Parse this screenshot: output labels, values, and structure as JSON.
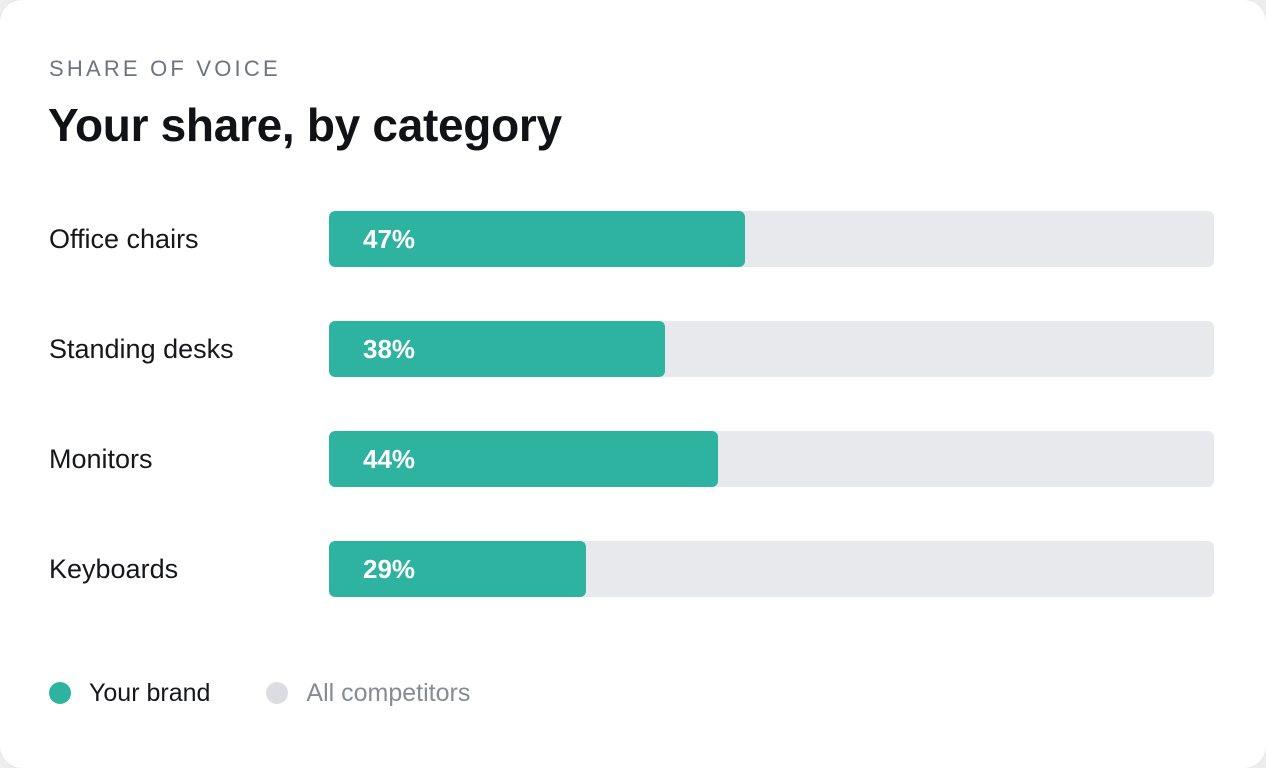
{
  "header": {
    "eyebrow": "SHARE OF VOICE",
    "title": "Your share, by category"
  },
  "colors": {
    "brand": "#2db3a0",
    "competitors": "#e8e9ed",
    "brand_legend_text": "#16171b",
    "competitors_legend_text": "#868b97",
    "competitors_swatch": "#dcdde2"
  },
  "chart_data": {
    "type": "bar",
    "orientation": "horizontal",
    "stacked": true,
    "title": "Your share, by category",
    "subtitle": "SHARE OF VOICE",
    "categories": [
      "Office chairs",
      "Standing desks",
      "Monitors",
      "Keyboards"
    ],
    "series": [
      {
        "name": "Your brand",
        "values": [
          47,
          38,
          44,
          29
        ],
        "labels": [
          "47%",
          "38%",
          "44%",
          "29%"
        ],
        "color": "#2db3a0"
      },
      {
        "name": "All competitors",
        "values": [
          53,
          62,
          56,
          71
        ],
        "color": "#e8e9ed"
      }
    ],
    "xlim": [
      0,
      100
    ],
    "unit": "%",
    "grid": false,
    "legend_placement": "bottom-left"
  },
  "legend": {
    "items": [
      {
        "label": "Your brand"
      },
      {
        "label": "All competitors"
      }
    ]
  }
}
